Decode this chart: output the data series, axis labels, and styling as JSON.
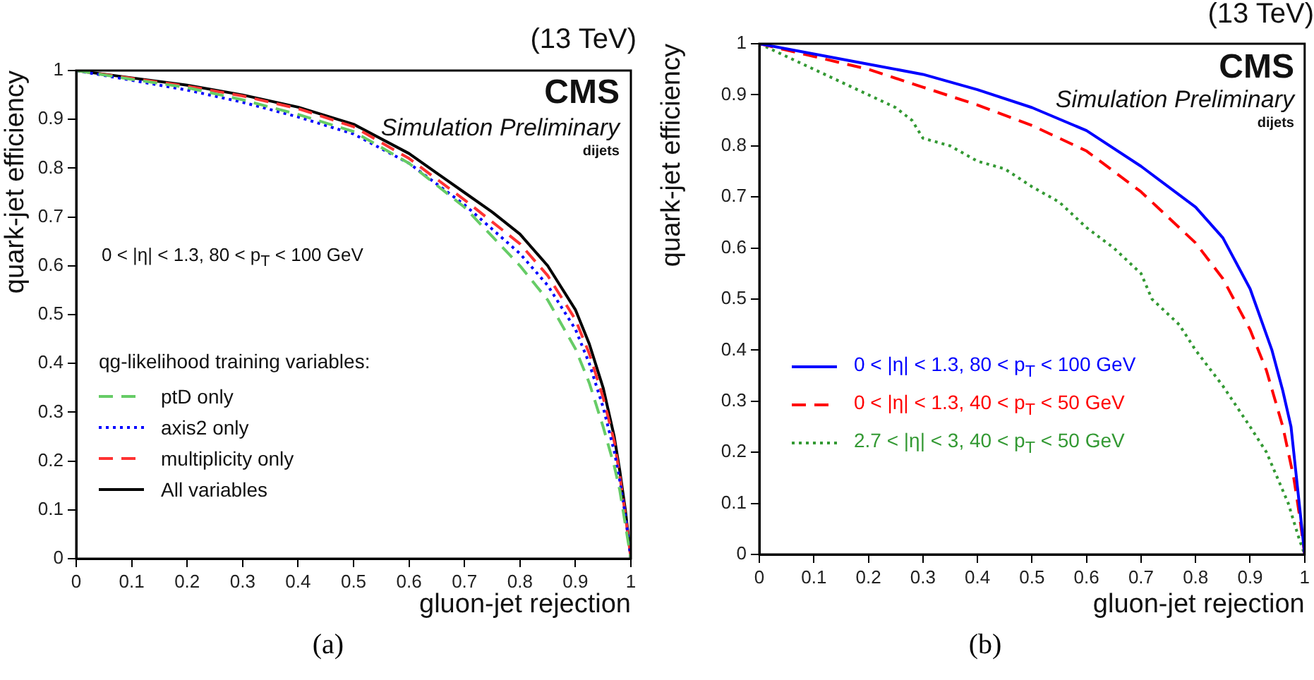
{
  "chart_data": [
    {
      "type": "line",
      "xlabel": "gluon-jet rejection",
      "ylabel": "quark-jet efficiency",
      "xlim": [
        0,
        1
      ],
      "ylim": [
        0,
        1
      ],
      "xticks": [
        0,
        0.1,
        0.2,
        0.3,
        0.4,
        0.5,
        0.6,
        0.7,
        0.8,
        0.9,
        1
      ],
      "yticks": [
        0,
        0.1,
        0.2,
        0.3,
        0.4,
        0.5,
        0.6,
        0.7,
        0.8,
        0.9,
        1
      ],
      "legend": "left",
      "legend_title": "qg-likelihood training variables:",
      "annotations": [
        "(13 TeV)",
        "CMS",
        "Simulation Preliminary",
        "dijets",
        "0 < |η| < 1.3, 80 < p$_{T}$ < 100 GeV",
        "(a)"
      ],
      "series": [
        {
          "name": "ptD only",
          "color": "#66cc66",
          "line_style": "dashed",
          "x": [
            0,
            0.1,
            0.2,
            0.3,
            0.4,
            0.5,
            0.6,
            0.7,
            0.8,
            0.85,
            0.9,
            0.925,
            0.95,
            0.97,
            0.98,
            0.99,
            1
          ],
          "values": [
            1,
            0.982,
            0.965,
            0.94,
            0.91,
            0.875,
            0.81,
            0.72,
            0.6,
            0.53,
            0.43,
            0.36,
            0.27,
            0.19,
            0.14,
            0.07,
            0
          ]
        },
        {
          "name": "axis2 only",
          "color": "#0000ff",
          "line_style": "dotted",
          "x": [
            0,
            0.1,
            0.2,
            0.3,
            0.4,
            0.5,
            0.6,
            0.7,
            0.8,
            0.85,
            0.9,
            0.925,
            0.95,
            0.97,
            0.98,
            0.99,
            1
          ],
          "values": [
            1,
            0.98,
            0.96,
            0.935,
            0.905,
            0.87,
            0.81,
            0.725,
            0.625,
            0.56,
            0.47,
            0.4,
            0.31,
            0.22,
            0.16,
            0.09,
            0
          ]
        },
        {
          "name": "multiplicity only",
          "color": "#ff3333",
          "line_style": "dashed",
          "x": [
            0,
            0.1,
            0.2,
            0.3,
            0.4,
            0.5,
            0.6,
            0.7,
            0.8,
            0.85,
            0.9,
            0.925,
            0.95,
            0.97,
            0.98,
            0.99,
            1
          ],
          "values": [
            1,
            0.984,
            0.968,
            0.948,
            0.922,
            0.885,
            0.82,
            0.735,
            0.645,
            0.58,
            0.49,
            0.42,
            0.33,
            0.24,
            0.17,
            0.09,
            0
          ]
        },
        {
          "name": "All variables",
          "color": "#000000",
          "line_style": "solid",
          "x": [
            0,
            0.1,
            0.2,
            0.3,
            0.4,
            0.5,
            0.6,
            0.65,
            0.7,
            0.75,
            0.8,
            0.85,
            0.9,
            0.925,
            0.95,
            0.97,
            0.98,
            0.99,
            1
          ],
          "values": [
            1,
            0.985,
            0.97,
            0.95,
            0.925,
            0.89,
            0.83,
            0.79,
            0.75,
            0.71,
            0.665,
            0.6,
            0.51,
            0.44,
            0.35,
            0.25,
            0.18,
            0.1,
            0
          ]
        }
      ]
    },
    {
      "type": "line",
      "xlabel": "gluon-jet rejection",
      "ylabel": "quark-jet efficiency",
      "xlim": [
        0,
        1
      ],
      "ylim": [
        0,
        1
      ],
      "xticks": [
        0,
        0.1,
        0.2,
        0.3,
        0.4,
        0.5,
        0.6,
        0.7,
        0.8,
        0.9,
        1
      ],
      "yticks": [
        0,
        0.1,
        0.2,
        0.3,
        0.4,
        0.5,
        0.6,
        0.7,
        0.8,
        0.9,
        1
      ],
      "legend": "left",
      "annotations": [
        "(13 TeV)",
        "CMS",
        "Simulation Preliminary",
        "dijets",
        "(b)"
      ],
      "series": [
        {
          "name": "0 < |η| < 1.3,  80 < p$_{T}$ < 100 GeV",
          "color": "#0000ff",
          "line_style": "solid",
          "x": [
            0,
            0.1,
            0.2,
            0.3,
            0.4,
            0.5,
            0.6,
            0.7,
            0.8,
            0.85,
            0.9,
            0.94,
            0.96,
            0.975,
            0.985,
            0.995,
            1
          ],
          "values": [
            1,
            0.98,
            0.96,
            0.94,
            0.91,
            0.875,
            0.83,
            0.76,
            0.68,
            0.62,
            0.52,
            0.4,
            0.32,
            0.25,
            0.15,
            0.05,
            0
          ]
        },
        {
          "name": "0 < |η| < 1.3,  40 < p$_{T}$ < 50 GeV",
          "color": "#ff0000",
          "line_style": "dashed",
          "x": [
            0,
            0.1,
            0.2,
            0.3,
            0.4,
            0.5,
            0.6,
            0.7,
            0.8,
            0.85,
            0.9,
            0.93,
            0.96,
            0.98,
            0.99,
            1
          ],
          "values": [
            1,
            0.975,
            0.95,
            0.915,
            0.88,
            0.84,
            0.79,
            0.71,
            0.61,
            0.54,
            0.44,
            0.36,
            0.25,
            0.15,
            0.08,
            0
          ]
        },
        {
          "name": "2.7 < |η| < 3,  40 < p$_{T}$ < 50 GeV",
          "color": "#339933",
          "line_style": "dotted",
          "x": [
            0,
            0.1,
            0.2,
            0.25,
            0.28,
            0.3,
            0.35,
            0.4,
            0.45,
            0.5,
            0.55,
            0.6,
            0.65,
            0.7,
            0.72,
            0.77,
            0.8,
            0.85,
            0.9,
            0.93,
            0.97,
            0.99,
            1
          ],
          "values": [
            1,
            0.95,
            0.9,
            0.875,
            0.85,
            0.815,
            0.8,
            0.77,
            0.755,
            0.72,
            0.69,
            0.64,
            0.6,
            0.55,
            0.5,
            0.45,
            0.4,
            0.33,
            0.25,
            0.2,
            0.1,
            0.03,
            0
          ]
        }
      ]
    }
  ]
}
